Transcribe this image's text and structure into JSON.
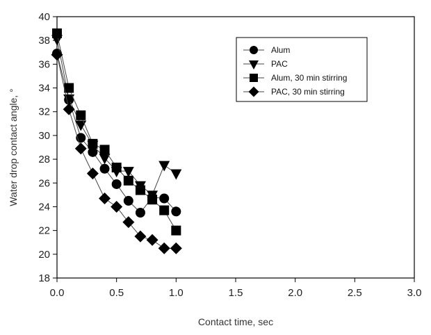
{
  "chart_data": {
    "type": "line",
    "xlabel": "Contact time, sec",
    "ylabel": "Water drop contact angle, °",
    "xlim": [
      0,
      3.0
    ],
    "ylim": [
      18,
      40
    ],
    "xticks": [
      "0.0",
      "0.5",
      "1.0",
      "1.5",
      "2.0",
      "2.5",
      "3.0"
    ],
    "yticks": [
      "18",
      "20",
      "22",
      "24",
      "26",
      "28",
      "30",
      "32",
      "34",
      "36",
      "38",
      "40"
    ],
    "grid": false,
    "legend_position": "top-right",
    "series": [
      {
        "name": "Alum",
        "marker": "circle",
        "x": [
          0.0,
          0.1,
          0.2,
          0.3,
          0.4,
          0.5,
          0.6,
          0.7,
          0.8,
          0.9,
          1.0
        ],
        "y": [
          36.9,
          33.0,
          29.8,
          28.6,
          27.2,
          25.9,
          24.5,
          23.5,
          24.8,
          24.7,
          23.6
        ]
      },
      {
        "name": "PAC",
        "marker": "triangle-down",
        "x": [
          0.0,
          0.1,
          0.2,
          0.3,
          0.4,
          0.5,
          0.6,
          0.7,
          0.8,
          0.9,
          1.0
        ],
        "y": [
          38.1,
          33.1,
          30.9,
          29.2,
          28.1,
          27.0,
          27.0,
          25.8,
          25.0,
          27.5,
          26.8
        ]
      },
      {
        "name": "Alum, 30 min stirring",
        "marker": "square",
        "x": [
          0.0,
          0.1,
          0.2,
          0.3,
          0.4,
          0.5,
          0.6,
          0.7,
          0.8,
          0.9,
          1.0
        ],
        "y": [
          38.6,
          34.0,
          31.7,
          29.3,
          28.8,
          27.3,
          26.2,
          25.4,
          24.6,
          23.7,
          22.0
        ]
      },
      {
        "name": "PAC, 30 min stirring",
        "marker": "diamond",
        "x": [
          0.0,
          0.1,
          0.2,
          0.3,
          0.4,
          0.5,
          0.6,
          0.7,
          0.8,
          0.9,
          1.0
        ],
        "y": [
          36.8,
          32.2,
          28.9,
          26.8,
          24.7,
          24.0,
          22.7,
          21.5,
          21.2,
          20.5,
          20.5
        ]
      }
    ],
    "colors": {
      "marker": "#000000",
      "line": "#444444",
      "axis": "#000000",
      "title": "#333333"
    }
  }
}
